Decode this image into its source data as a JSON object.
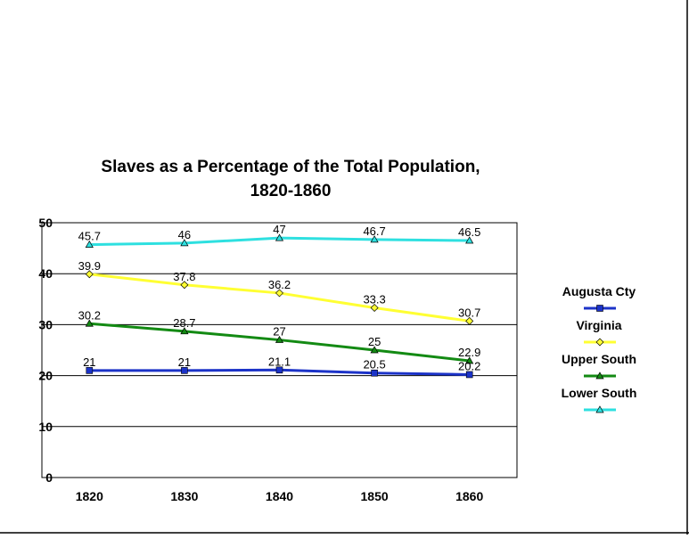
{
  "chart_data": {
    "type": "line",
    "title": "Slaves as a Percentage of the Total Population,",
    "subtitle": "1820-1860",
    "xlabel": "",
    "ylabel": "",
    "ylim": [
      0,
      50
    ],
    "yticks": [
      0,
      10,
      20,
      30,
      40,
      50
    ],
    "grid": true,
    "legend_position": "right",
    "categories": [
      "1820",
      "1830",
      "1840",
      "1850",
      "1860"
    ],
    "series": [
      {
        "name": "Augusta Cty",
        "color": "#1c33c8",
        "marker": "square",
        "values": [
          21,
          21,
          21.1,
          20.5,
          20.2
        ],
        "labels": [
          "21",
          "21",
          "21.1",
          "20.5",
          "20.2"
        ]
      },
      {
        "name": "Virginia",
        "color": "#ffff33",
        "marker": "diamond",
        "values": [
          39.9,
          37.8,
          36.2,
          33.3,
          30.7
        ],
        "labels": [
          "39.9",
          "37.8",
          "36.2",
          "33.3",
          "30.7"
        ]
      },
      {
        "name": "Upper South",
        "color": "#138a13",
        "marker": "triangle",
        "values": [
          30.2,
          28.7,
          27,
          25,
          22.9
        ],
        "labels": [
          "30.2",
          "28.7",
          "27",
          "25",
          "22.9"
        ]
      },
      {
        "name": "Lower South",
        "color": "#2ee0e0",
        "marker": "triangle",
        "values": [
          45.7,
          46,
          47,
          46.7,
          46.5
        ],
        "labels": [
          "45.7",
          "46",
          "47",
          "46.7",
          "46.5"
        ]
      }
    ]
  }
}
